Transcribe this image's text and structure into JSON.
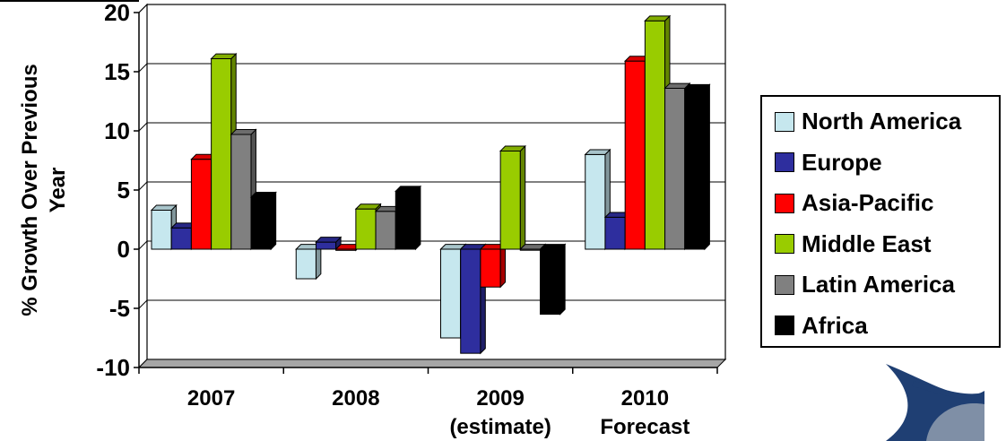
{
  "chart_data": {
    "type": "bar",
    "ylabel": "% Growth Over Previous Year",
    "ylim": [
      -10,
      20
    ],
    "yticks": [
      -10,
      -5,
      0,
      5,
      10,
      15,
      20
    ],
    "categories": [
      {
        "line1": "2007",
        "line2": ""
      },
      {
        "line1": "2008",
        "line2": ""
      },
      {
        "line1": "2009",
        "line2": "(estimate)"
      },
      {
        "line1": "2010",
        "line2": "Forecast"
      }
    ],
    "series": [
      {
        "name": "North America",
        "color": "#C6E7EE",
        "values": [
          3.3,
          -2.5,
          -7.5,
          8.0
        ]
      },
      {
        "name": "Europe",
        "color": "#2E2E9E",
        "values": [
          1.8,
          0.6,
          -8.8,
          2.7
        ]
      },
      {
        "name": "Asia-Pacific",
        "color": "#FF0000",
        "values": [
          7.6,
          -0.1,
          -3.2,
          15.9
        ]
      },
      {
        "name": "Middle East",
        "color": "#99CC00",
        "values": [
          16.1,
          3.4,
          8.3,
          19.3
        ]
      },
      {
        "name": "Latin America",
        "color": "#808080",
        "values": [
          9.7,
          3.2,
          0.0,
          13.6
        ]
      },
      {
        "name": "Africa",
        "color": "#000000",
        "values": [
          4.4,
          4.9,
          -5.5,
          13.5
        ]
      }
    ],
    "grid": true,
    "legend_position": "right"
  },
  "logo": {
    "name": "company-logo-icon"
  }
}
